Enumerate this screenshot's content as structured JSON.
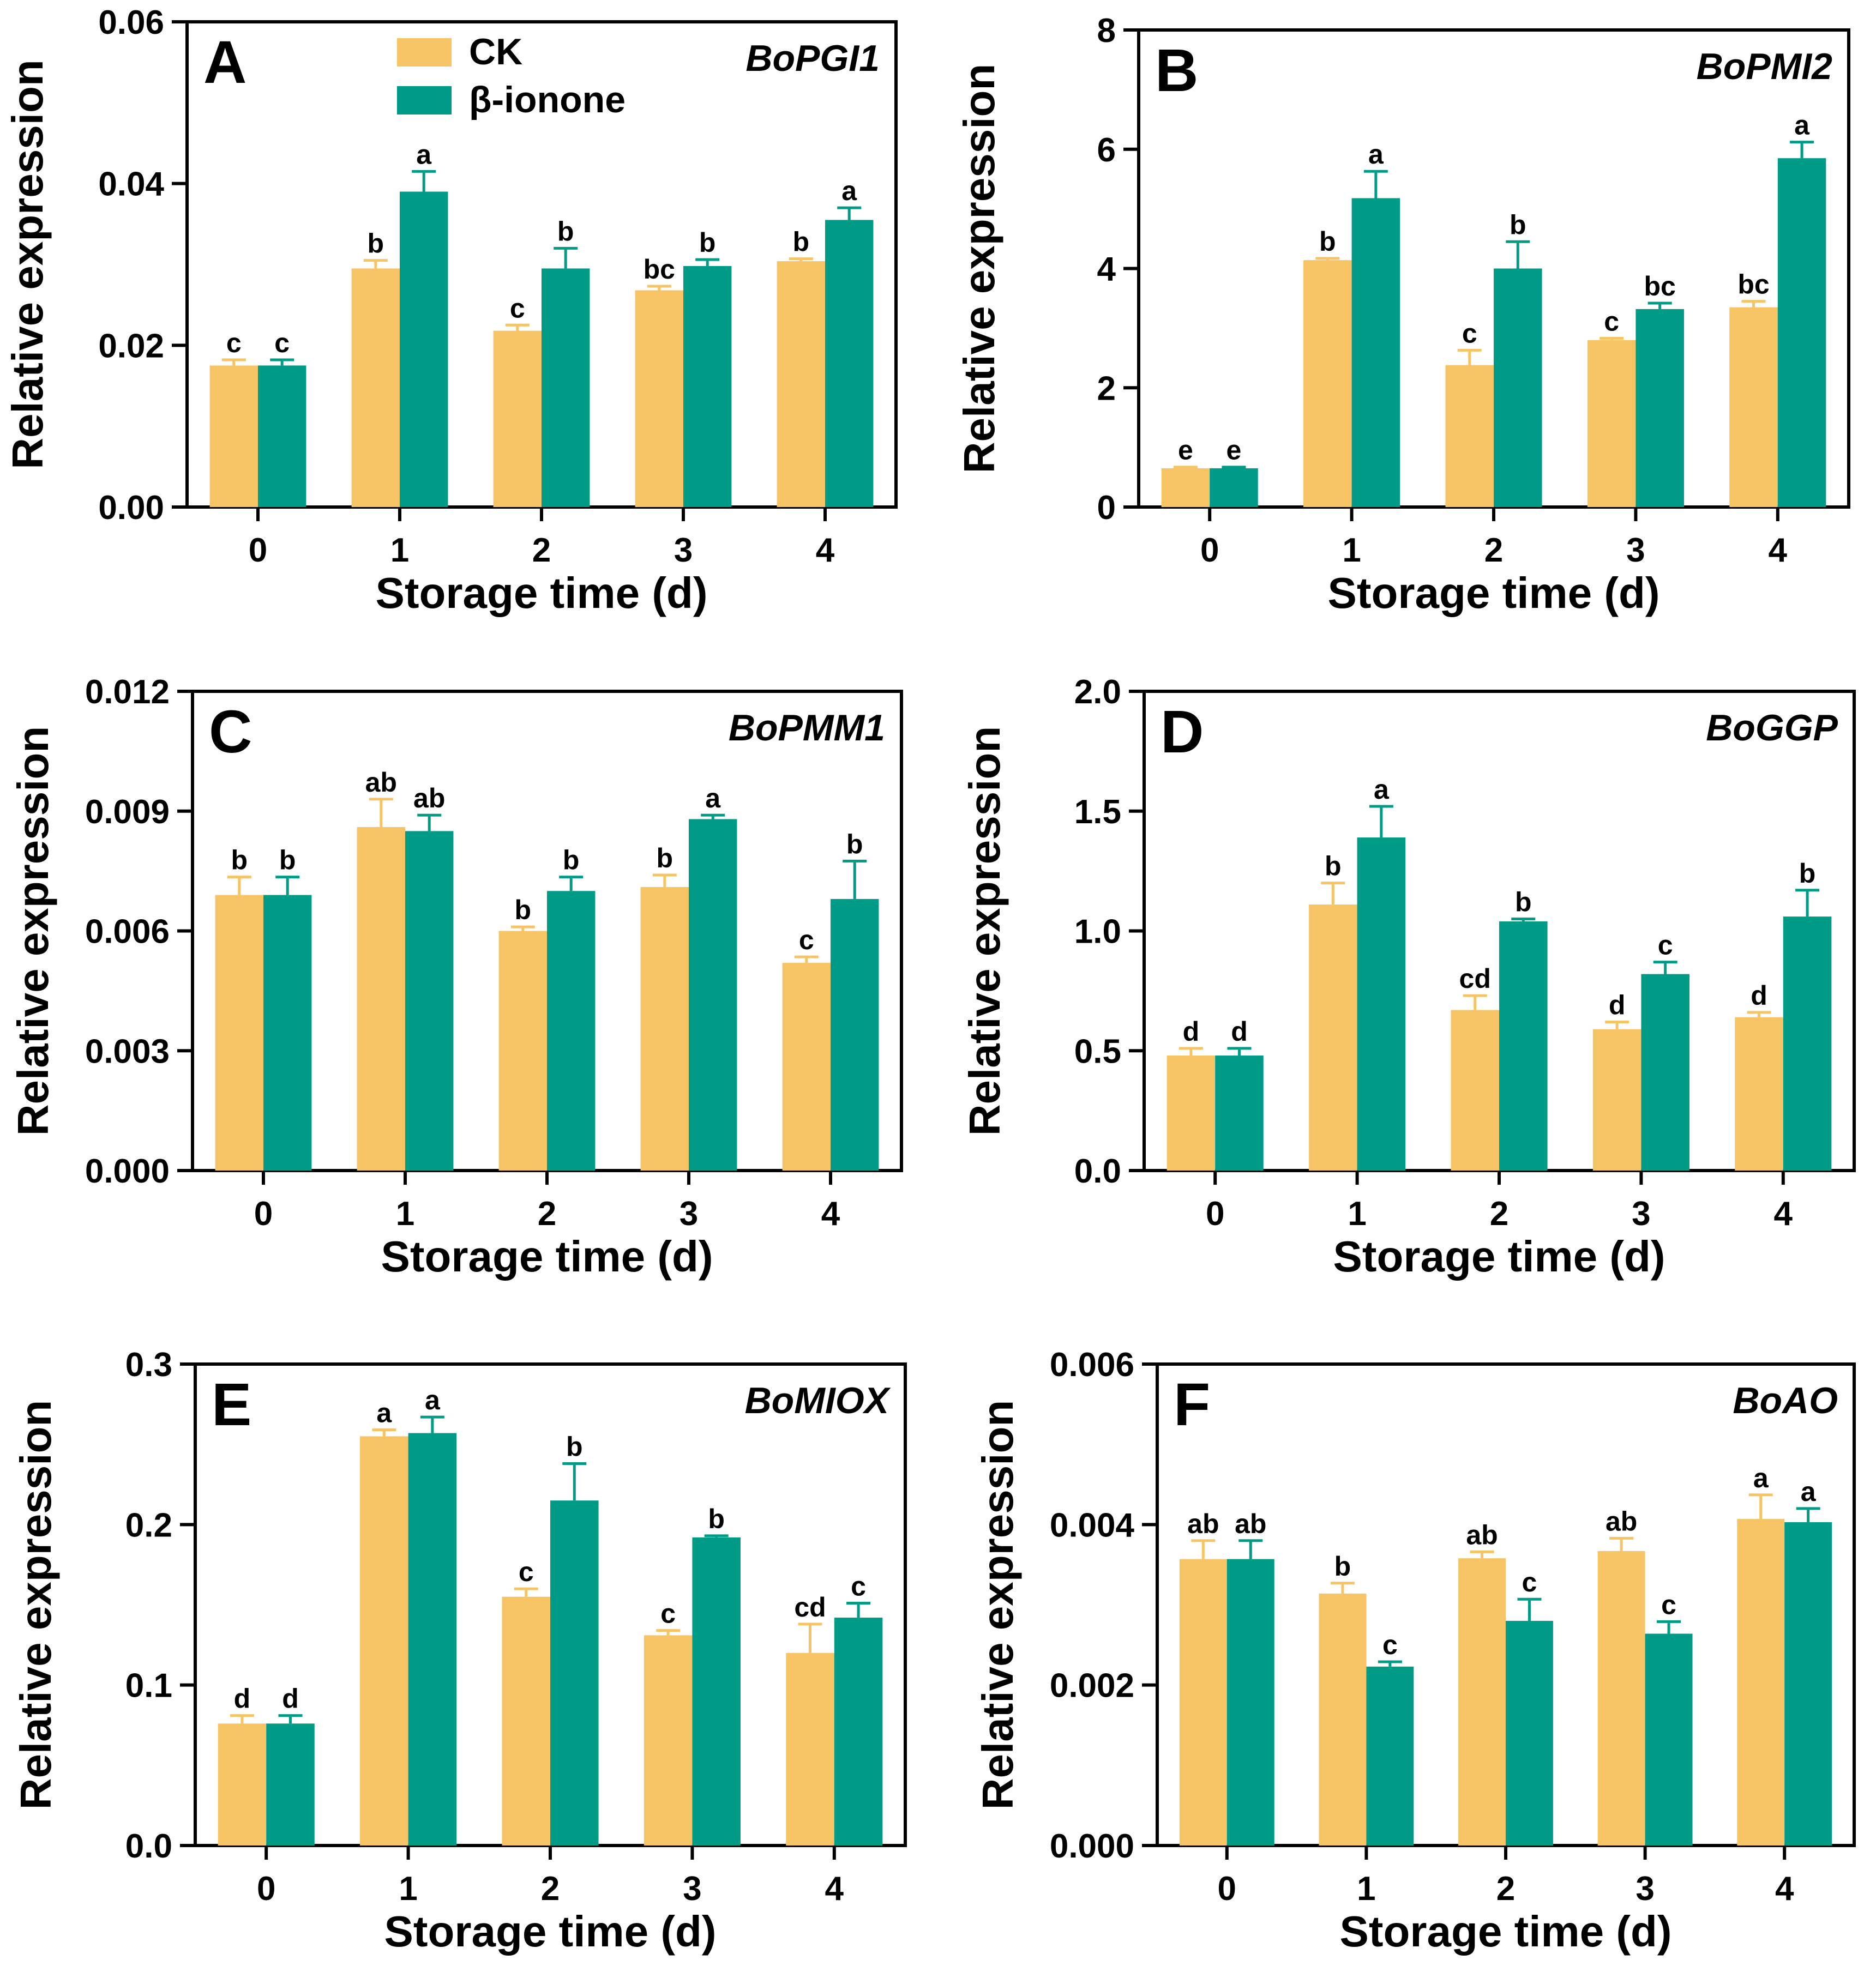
{
  "colors": {
    "ck": "#F6C465",
    "ionone": "#009B86"
  },
  "legend": {
    "series": [
      "CK",
      "β-ionone"
    ]
  },
  "chart_data": [
    {
      "type": "bar",
      "panel": "A",
      "gene": "BoPGI1",
      "xlabel": "Storage time (d)",
      "ylabel": "Relative expression",
      "categories": [
        "0",
        "1",
        "2",
        "3",
        "4"
      ],
      "ylim": [
        0,
        0.06
      ],
      "yticks": [
        0,
        0.02,
        0.04,
        0.06
      ],
      "ytick_labels": [
        "0.00",
        "0.02",
        "0.04",
        "0.06"
      ],
      "series": [
        {
          "name": "CK",
          "values": [
            0.0175,
            0.0295,
            0.0218,
            0.0268,
            0.0304
          ],
          "errors": [
            0.0007,
            0.001,
            0.0007,
            0.0005,
            0.0003
          ],
          "letters": [
            "c",
            "b",
            "c",
            "bc",
            "b"
          ]
        },
        {
          "name": "β-ionone",
          "values": [
            0.0175,
            0.039,
            0.0295,
            0.0298,
            0.0355
          ],
          "errors": [
            0.0007,
            0.0025,
            0.0025,
            0.0008,
            0.0015
          ],
          "letters": [
            "c",
            "a",
            "b",
            "b",
            "a"
          ]
        }
      ]
    },
    {
      "type": "bar",
      "panel": "B",
      "gene": "BoPMI2",
      "xlabel": "Storage time (d)",
      "ylabel": "Relative expression",
      "categories": [
        "0",
        "1",
        "2",
        "3",
        "4"
      ],
      "ylim": [
        0,
        8
      ],
      "yticks": [
        0,
        2,
        4,
        6,
        8
      ],
      "ytick_labels": [
        "0",
        "2",
        "4",
        "6",
        "8"
      ],
      "series": [
        {
          "name": "CK",
          "values": [
            0.65,
            4.14,
            2.38,
            2.8,
            3.35
          ],
          "errors": [
            0.02,
            0.03,
            0.25,
            0.03,
            0.1
          ],
          "letters": [
            "e",
            "b",
            "c",
            "c",
            "bc"
          ]
        },
        {
          "name": "β-ionone",
          "values": [
            0.65,
            5.18,
            4.0,
            3.32,
            5.85
          ],
          "errors": [
            0.02,
            0.45,
            0.45,
            0.1,
            0.27
          ],
          "letters": [
            "e",
            "a",
            "b",
            "bc",
            "a"
          ]
        }
      ]
    },
    {
      "type": "bar",
      "panel": "C",
      "gene": "BoPMM1",
      "xlabel": "Storage time (d)",
      "ylabel": "Relative expression",
      "categories": [
        "0",
        "1",
        "2",
        "3",
        "4"
      ],
      "ylim": [
        0,
        0.012
      ],
      "yticks": [
        0,
        0.003,
        0.006,
        0.009,
        0.012
      ],
      "ytick_labels": [
        "0.000",
        "0.003",
        "0.006",
        "0.009",
        "0.012"
      ],
      "series": [
        {
          "name": "CK",
          "values": [
            0.0069,
            0.0086,
            0.006,
            0.0071,
            0.0052
          ],
          "errors": [
            0.00045,
            0.0007,
            0.0001,
            0.0003,
            0.00015
          ],
          "letters": [
            "b",
            "ab",
            "b",
            "b",
            "c"
          ]
        },
        {
          "name": "β-ionone",
          "values": [
            0.0069,
            0.0085,
            0.007,
            0.0088,
            0.0068
          ],
          "errors": [
            0.00045,
            0.0004,
            0.00035,
            0.0001,
            0.00095
          ],
          "letters": [
            "b",
            "ab",
            "b",
            "a",
            "b"
          ]
        }
      ]
    },
    {
      "type": "bar",
      "panel": "D",
      "gene": "BoGGP",
      "xlabel": "Storage time (d)",
      "ylabel": "Relative expression",
      "categories": [
        "0",
        "1",
        "2",
        "3",
        "4"
      ],
      "ylim": [
        0,
        2.0
      ],
      "yticks": [
        0,
        0.5,
        1.0,
        1.5,
        2.0
      ],
      "ytick_labels": [
        "0.0",
        "0.5",
        "1.0",
        "1.5",
        "2.0"
      ],
      "series": [
        {
          "name": "CK",
          "values": [
            0.48,
            1.11,
            0.67,
            0.59,
            0.64
          ],
          "errors": [
            0.03,
            0.09,
            0.06,
            0.03,
            0.02
          ],
          "letters": [
            "d",
            "b",
            "cd",
            "d",
            "d"
          ]
        },
        {
          "name": "β-ionone",
          "values": [
            0.48,
            1.39,
            1.04,
            0.82,
            1.06
          ],
          "errors": [
            0.03,
            0.13,
            0.01,
            0.05,
            0.11
          ],
          "letters": [
            "d",
            "a",
            "b",
            "c",
            "b"
          ]
        }
      ]
    },
    {
      "type": "bar",
      "panel": "E",
      "gene": "BoMIOX",
      "xlabel": "Storage time (d)",
      "ylabel": "Relative expression",
      "categories": [
        "0",
        "1",
        "2",
        "3",
        "4"
      ],
      "ylim": [
        0,
        0.3
      ],
      "yticks": [
        0,
        0.1,
        0.2,
        0.3
      ],
      "ytick_labels": [
        "0.0",
        "0.1",
        "0.2",
        "0.3"
      ],
      "series": [
        {
          "name": "CK",
          "values": [
            0.076,
            0.255,
            0.155,
            0.131,
            0.12
          ],
          "errors": [
            0.005,
            0.004,
            0.005,
            0.003,
            0.018
          ],
          "letters": [
            "d",
            "a",
            "c",
            "c",
            "cd"
          ]
        },
        {
          "name": "β-ionone",
          "values": [
            0.076,
            0.257,
            0.215,
            0.192,
            0.142
          ],
          "errors": [
            0.005,
            0.01,
            0.023,
            0.001,
            0.009
          ],
          "letters": [
            "d",
            "a",
            "b",
            "b",
            "c"
          ]
        }
      ]
    },
    {
      "type": "bar",
      "panel": "F",
      "gene": "BoAO",
      "xlabel": "Storage time (d)",
      "ylabel": "Relative expression",
      "categories": [
        "0",
        "1",
        "2",
        "3",
        "4"
      ],
      "ylim": [
        0,
        0.006
      ],
      "yticks": [
        0,
        0.002,
        0.004,
        0.006
      ],
      "ytick_labels": [
        "0.000",
        "0.002",
        "0.004",
        "0.006"
      ],
      "series": [
        {
          "name": "CK",
          "values": [
            0.00357,
            0.00314,
            0.00358,
            0.00367,
            0.00407
          ],
          "errors": [
            0.00023,
            0.00013,
            8e-05,
            0.00016,
            0.0003
          ],
          "letters": [
            "ab",
            "b",
            "ab",
            "ab",
            "a"
          ]
        },
        {
          "name": "β-ionone",
          "values": [
            0.00357,
            0.00223,
            0.0028,
            0.00264,
            0.00403
          ],
          "errors": [
            0.00023,
            6e-05,
            0.00027,
            0.00015,
            0.00017
          ],
          "letters": [
            "ab",
            "c",
            "c",
            "c",
            "a"
          ]
        }
      ]
    }
  ]
}
